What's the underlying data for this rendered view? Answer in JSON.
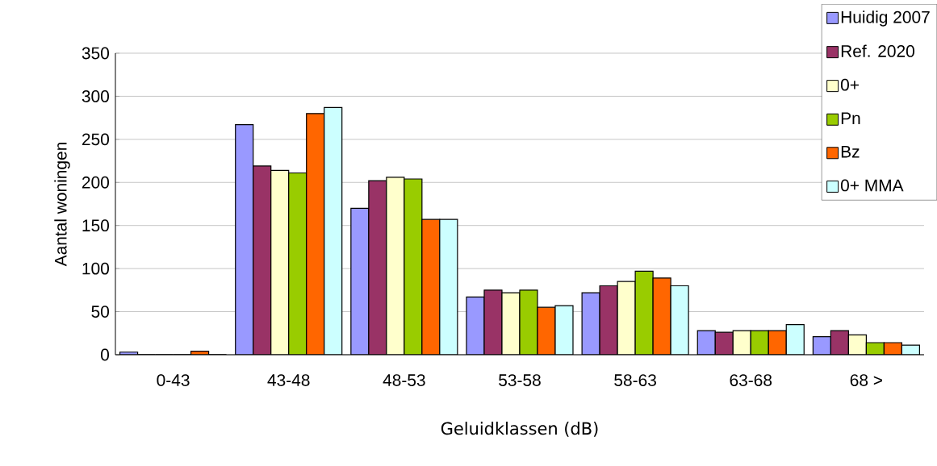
{
  "chart_data": {
    "type": "bar",
    "xlabel": "Geluidklassen (dB)",
    "ylabel": "Aantal woningen",
    "categories": [
      "0-43",
      "43-48",
      "48-53",
      "53-58",
      "58-63",
      "63-68",
      "68 >"
    ],
    "series": [
      {
        "name": "Huidig 2007",
        "color": "#9999ff",
        "values": [
          3,
          267,
          170,
          67,
          72,
          28,
          21
        ]
      },
      {
        "name": "Ref. 2020",
        "color": "#993366",
        "values": [
          0,
          219,
          202,
          75,
          80,
          26,
          28
        ]
      },
      {
        "name": "0+",
        "color": "#ffffcc",
        "values": [
          0,
          214,
          206,
          72,
          85,
          28,
          23
        ]
      },
      {
        "name": "Pn",
        "color": "#99cc00",
        "values": [
          0,
          211,
          204,
          75,
          97,
          28,
          14
        ]
      },
      {
        "name": "Bz",
        "color": "#ff6600",
        "values": [
          4,
          280,
          157,
          55,
          89,
          28,
          14
        ]
      },
      {
        "name": "0+ MMA",
        "color": "#ccffff",
        "values": [
          0,
          287,
          157,
          57,
          80,
          35,
          11
        ]
      }
    ],
    "ylim": [
      0,
      350
    ],
    "yticks": [
      0,
      50,
      100,
      150,
      200,
      250,
      300,
      350
    ],
    "grid": "y",
    "legend": "top right"
  }
}
